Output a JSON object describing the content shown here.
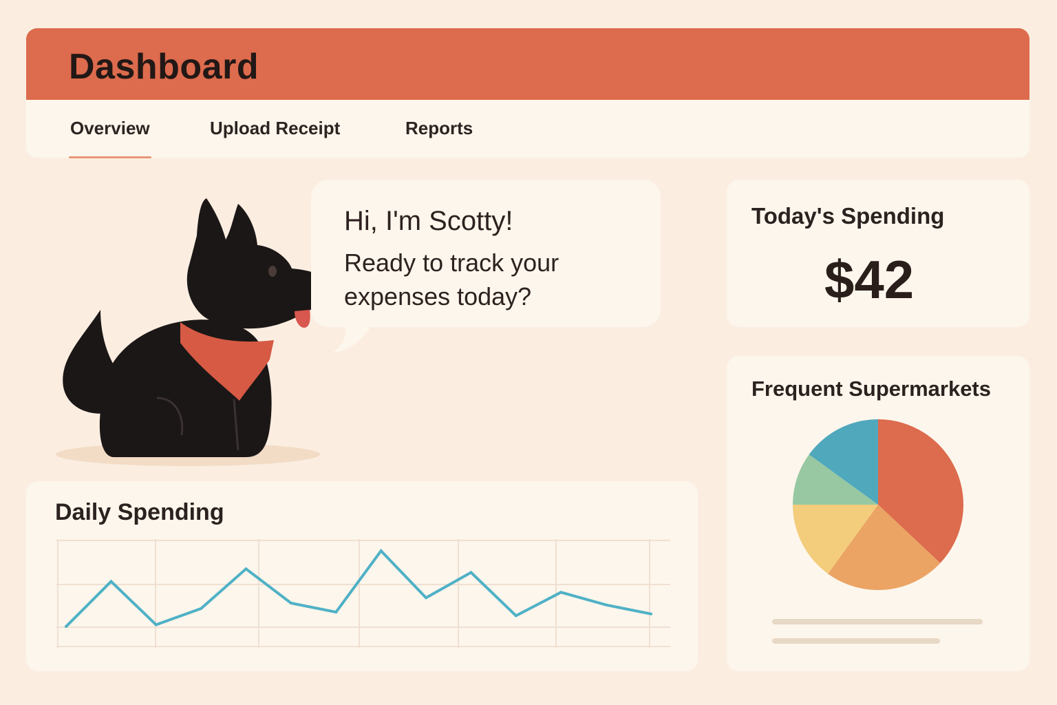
{
  "header": {
    "title": "Dashboard"
  },
  "tabs": [
    {
      "label": "Overview",
      "active": true
    },
    {
      "label": "Upload Receipt",
      "active": false
    },
    {
      "label": "Reports",
      "active": false
    }
  ],
  "mascot": {
    "greeting": "Hi, I'm Scotty!",
    "message": "Ready to track your expenses today?"
  },
  "today": {
    "title": "Today's Spending",
    "amount": "$42"
  },
  "supermarkets": {
    "title": "Frequent Supermarkets"
  },
  "daily": {
    "title": "Daily Spending"
  },
  "colors": {
    "accent": "#dd6b4d",
    "background": "#fbeee1",
    "card": "#fdf6ec",
    "line": "#4fb1c6",
    "pie": [
      "#dd6b4d",
      "#eba464",
      "#f4cd7c",
      "#97c8a2",
      "#4fa8bc"
    ]
  },
  "chart_data": [
    {
      "type": "line",
      "title": "Daily Spending",
      "x": [
        1,
        2,
        3,
        4,
        5,
        6,
        7,
        8,
        9,
        10,
        11,
        12,
        13,
        14
      ],
      "series": [
        {
          "values": [
            8,
            33,
            9,
            18,
            40,
            21,
            16,
            50,
            24,
            38,
            14,
            27,
            20,
            15
          ]
        }
      ],
      "ylim": [
        0,
        55
      ],
      "grid": true
    },
    {
      "type": "pie",
      "title": "Frequent Supermarkets",
      "values": [
        37,
        23,
        15,
        10,
        15
      ],
      "colors": [
        "#dd6b4d",
        "#eba464",
        "#f4cd7c",
        "#97c8a2",
        "#4fa8bc"
      ]
    }
  ]
}
